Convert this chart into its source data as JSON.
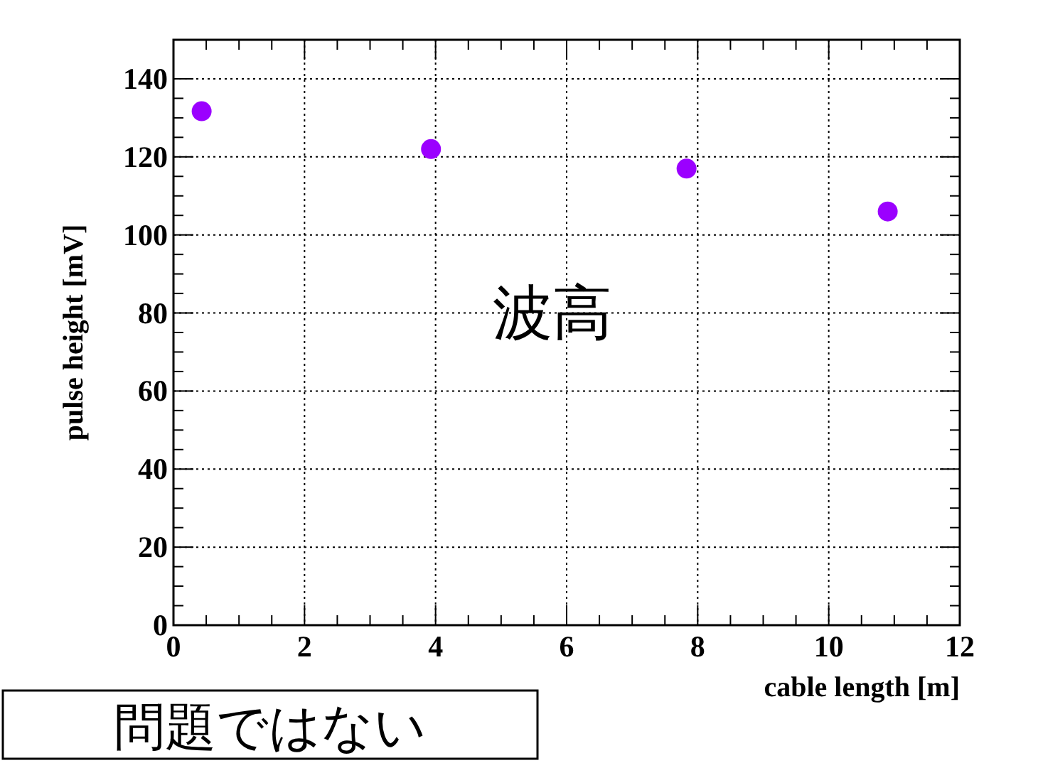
{
  "chart_data": {
    "type": "scatter",
    "xlabel": "cable length [m]",
    "ylabel": "pulse height [mV]",
    "x": [
      0.43,
      3.93,
      7.83,
      10.9
    ],
    "values": [
      131.7,
      122,
      117,
      106
    ],
    "color": "#9b00ff",
    "marker": "circle",
    "xlim": [
      0,
      12
    ],
    "ylim": [
      0,
      150
    ],
    "xticks": [
      0,
      2,
      4,
      6,
      8,
      10,
      12
    ],
    "yticks": [
      0,
      20,
      40,
      60,
      80,
      100,
      120,
      140
    ],
    "grid": true,
    "annotations": [
      "波高",
      "問題ではない"
    ]
  }
}
